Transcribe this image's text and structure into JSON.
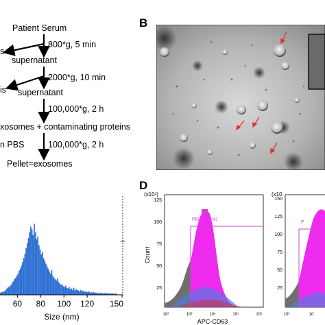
{
  "panels": {
    "B": "B",
    "D": "D"
  },
  "flowchart": {
    "start": "Patient Serum",
    "step1": "800*g, 5 min",
    "left1": "s",
    "sup1": "supernatant",
    "step2": "2000*g, 10 min",
    "left2": "is",
    "sup2": "supernatant",
    "step3": "100,000*g, 2 h",
    "mix": "xosomes + contaminating proteins",
    "resusp": "n PBS",
    "step4": "100,000*g, 2 h",
    "end": "Pellet=exosomes"
  },
  "flow_cytometry": {
    "gate_label": "P6(47.84%)",
    "xlabel": "APC-CD63",
    "ylabel": "Count",
    "scale": "(x10¹)",
    "scale_right": "(x10",
    "gate_label_right": "P",
    "yticks": [
      "25",
      "50",
      "75",
      "100",
      "125"
    ],
    "yticks_right": [
      "25",
      "50",
      "75",
      "100",
      "125",
      "150"
    ],
    "xticks": [
      "10²",
      "10³",
      "10⁴",
      "10⁵",
      "10⁶"
    ],
    "xticks_right": [
      "10²",
      "10"
    ]
  },
  "colors": {
    "histogram_bar": "#2d6fd2",
    "gate": "#d43fd4",
    "fill": "#ee2aee",
    "gray": "#6f6f6f"
  },
  "chart_data": {
    "type": "bar",
    "xlabel": "Size (nm)",
    "xlim": [
      45,
      150
    ],
    "xticks": [
      60,
      80,
      100,
      120,
      150
    ],
    "bin_width": 1,
    "x": [
      45,
      46,
      47,
      48,
      49,
      50,
      51,
      52,
      53,
      54,
      55,
      56,
      57,
      58,
      59,
      60,
      61,
      62,
      63,
      64,
      65,
      66,
      67,
      68,
      69,
      70,
      71,
      72,
      73,
      74,
      75,
      76,
      77,
      78,
      79,
      80,
      81,
      82,
      83,
      84,
      85,
      86,
      87,
      88,
      89,
      90,
      91,
      92,
      93,
      94,
      95,
      96,
      97,
      98,
      99,
      100,
      101,
      102,
      103,
      104,
      105,
      106,
      107,
      108,
      109,
      110,
      111,
      112,
      113,
      114,
      115,
      116,
      117,
      118,
      119,
      120,
      121,
      122,
      123,
      124,
      125,
      126,
      127,
      128,
      129,
      130,
      131,
      132,
      133,
      134,
      135,
      136,
      137,
      138,
      139,
      140,
      141,
      142,
      143,
      144,
      145
    ],
    "values": [
      3,
      4,
      4,
      5,
      6,
      8,
      10,
      11,
      12,
      14,
      17,
      19,
      22,
      24,
      27,
      30,
      34,
      37,
      41,
      46,
      52,
      58,
      66,
      73,
      80,
      88,
      96,
      92,
      84,
      100,
      88,
      78,
      82,
      70,
      64,
      57,
      60,
      52,
      48,
      44,
      40,
      37,
      33,
      30,
      35,
      27,
      24,
      22,
      20,
      23,
      18,
      16,
      14,
      15,
      12,
      11,
      13,
      10,
      9,
      11,
      8,
      9,
      7,
      10,
      6,
      8,
      7,
      6,
      5,
      7,
      5,
      6,
      4,
      5,
      4,
      4,
      5,
      3,
      4,
      3,
      4,
      3,
      3,
      3,
      2,
      3,
      2,
      3,
      2,
      2,
      3,
      2,
      2,
      2,
      2,
      2,
      2,
      2,
      1,
      2,
      1
    ],
    "ylim": [
      0,
      135
    ],
    "x_axis": "Size (nm)"
  }
}
